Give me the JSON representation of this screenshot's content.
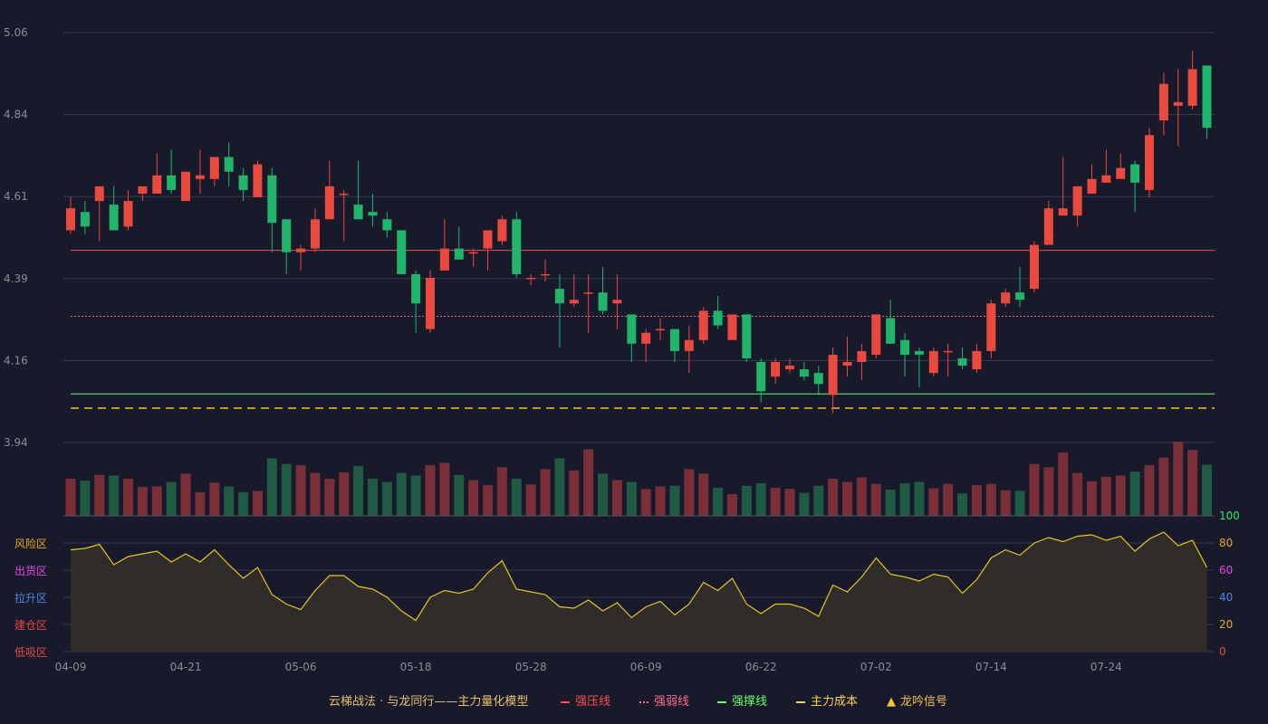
{
  "chart_data": {
    "type": "candlestick",
    "price_axis": {
      "ticks": [
        "5.06",
        "4.84",
        "4.61",
        "4.39",
        "4.16",
        "3.94"
      ],
      "range": [
        3.94,
        5.06
      ]
    },
    "x_tick_labels": [
      "04-09",
      "04-21",
      "05-06",
      "05-18",
      "05-28",
      "06-09",
      "06-22",
      "07-02",
      "07-14",
      "07-24"
    ],
    "x_tick_indices": [
      0,
      8,
      16,
      24,
      32,
      40,
      48,
      56,
      64,
      72
    ],
    "candles": [
      [
        4.52,
        4.58,
        4.61,
        4.51
      ],
      [
        4.57,
        4.53,
        4.6,
        4.51
      ],
      [
        4.6,
        4.64,
        4.64,
        4.49
      ],
      [
        4.59,
        4.52,
        4.64,
        4.52
      ],
      [
        4.53,
        4.6,
        4.63,
        4.52
      ],
      [
        4.62,
        4.64,
        4.64,
        4.6
      ],
      [
        4.62,
        4.67,
        4.73,
        4.62
      ],
      [
        4.67,
        4.63,
        4.74,
        4.62
      ],
      [
        4.6,
        4.68,
        4.68,
        4.6
      ],
      [
        4.66,
        4.67,
        4.74,
        4.62
      ],
      [
        4.66,
        4.72,
        4.72,
        4.64
      ],
      [
        4.72,
        4.68,
        4.76,
        4.64
      ],
      [
        4.67,
        4.63,
        4.69,
        4.6
      ],
      [
        4.61,
        4.7,
        4.71,
        4.61
      ],
      [
        4.67,
        4.54,
        4.69,
        4.46
      ],
      [
        4.55,
        4.46,
        4.55,
        4.4
      ],
      [
        4.46,
        4.47,
        4.48,
        4.41
      ],
      [
        4.47,
        4.55,
        4.58,
        4.46
      ],
      [
        4.55,
        4.64,
        4.71,
        4.55
      ],
      [
        4.62,
        4.62,
        4.63,
        4.49
      ],
      [
        4.59,
        4.55,
        4.71,
        4.55
      ],
      [
        4.57,
        4.56,
        4.62,
        4.53
      ],
      [
        4.55,
        4.52,
        4.57,
        4.5
      ],
      [
        4.52,
        4.4,
        4.52,
        4.4
      ],
      [
        4.4,
        4.32,
        4.41,
        4.24
      ],
      [
        4.25,
        4.39,
        4.41,
        4.24
      ],
      [
        4.41,
        4.47,
        4.55,
        4.41
      ],
      [
        4.47,
        4.44,
        4.53,
        4.44
      ],
      [
        4.46,
        4.46,
        4.47,
        4.42
      ],
      [
        4.47,
        4.52,
        4.52,
        4.41
      ],
      [
        4.49,
        4.55,
        4.56,
        4.48
      ],
      [
        4.55,
        4.4,
        4.57,
        4.39
      ],
      [
        4.39,
        4.39,
        4.4,
        4.37
      ],
      [
        4.4,
        4.4,
        4.44,
        4.38
      ],
      [
        4.36,
        4.32,
        4.4,
        4.2
      ],
      [
        4.32,
        4.33,
        4.4,
        4.31
      ],
      [
        4.35,
        4.35,
        4.4,
        4.24
      ],
      [
        4.35,
        4.3,
        4.42,
        4.29
      ],
      [
        4.32,
        4.33,
        4.4,
        4.25
      ],
      [
        4.29,
        4.21,
        4.29,
        4.16
      ],
      [
        4.21,
        4.24,
        4.25,
        4.16
      ],
      [
        4.25,
        4.25,
        4.28,
        4.22
      ],
      [
        4.25,
        4.19,
        4.25,
        4.16
      ],
      [
        4.19,
        4.22,
        4.26,
        4.13
      ],
      [
        4.22,
        4.3,
        4.31,
        4.21
      ],
      [
        4.3,
        4.26,
        4.34,
        4.25
      ],
      [
        4.22,
        4.29,
        4.29,
        4.25
      ],
      [
        4.29,
        4.17,
        4.29,
        4.16
      ],
      [
        4.16,
        4.08,
        4.17,
        4.05
      ],
      [
        4.12,
        4.16,
        4.17,
        4.1
      ],
      [
        4.14,
        4.15,
        4.17,
        4.13
      ],
      [
        4.14,
        4.12,
        4.16,
        4.11
      ],
      [
        4.13,
        4.1,
        4.15,
        4.07
      ],
      [
        4.07,
        4.18,
        4.2,
        4.02
      ],
      [
        4.15,
        4.16,
        4.23,
        4.12
      ],
      [
        4.16,
        4.19,
        4.21,
        4.11
      ],
      [
        4.18,
        4.29,
        4.29,
        4.17
      ],
      [
        4.28,
        4.21,
        4.33,
        4.21
      ],
      [
        4.22,
        4.18,
        4.24,
        4.12
      ],
      [
        4.19,
        4.18,
        4.2,
        4.09
      ],
      [
        4.13,
        4.19,
        4.2,
        4.12
      ],
      [
        4.19,
        4.19,
        4.21,
        4.12
      ],
      [
        4.17,
        4.15,
        4.2,
        4.14
      ],
      [
        4.14,
        4.19,
        4.21,
        4.13
      ],
      [
        4.19,
        4.32,
        4.33,
        4.17
      ],
      [
        4.32,
        4.35,
        4.36,
        4.31
      ],
      [
        4.35,
        4.33,
        4.42,
        4.31
      ],
      [
        4.36,
        4.48,
        4.49,
        4.35
      ],
      [
        4.48,
        4.58,
        4.6,
        4.48
      ],
      [
        4.56,
        4.58,
        4.72,
        4.56
      ],
      [
        4.56,
        4.64,
        4.64,
        4.53
      ],
      [
        4.62,
        4.66,
        4.7,
        4.62
      ],
      [
        4.65,
        4.67,
        4.74,
        4.65
      ],
      [
        4.66,
        4.69,
        4.73,
        4.66
      ],
      [
        4.7,
        4.65,
        4.71,
        4.57
      ],
      [
        4.63,
        4.78,
        4.8,
        4.61
      ],
      [
        4.82,
        4.92,
        4.95,
        4.78
      ],
      [
        4.86,
        4.87,
        4.96,
        4.75
      ],
      [
        4.86,
        4.96,
        5.01,
        4.85
      ],
      [
        4.97,
        4.8,
        4.97,
        4.77
      ]
    ],
    "volume": [
      58,
      55,
      64,
      63,
      58,
      45,
      46,
      53,
      66,
      37,
      52,
      46,
      37,
      39,
      90,
      81,
      79,
      67,
      58,
      68,
      78,
      58,
      53,
      67,
      63,
      79,
      83,
      64,
      56,
      48,
      76,
      58,
      49,
      73,
      90,
      71,
      104,
      66,
      56,
      53,
      42,
      46,
      47,
      73,
      66,
      44,
      34,
      47,
      51,
      44,
      42,
      36,
      47,
      58,
      53,
      60,
      50,
      41,
      51,
      53,
      43,
      50,
      35,
      48,
      50,
      40,
      39,
      81,
      76,
      99,
      67,
      54,
      61,
      63,
      69,
      79,
      91,
      116,
      103,
      80
    ],
    "levels": {
      "strong_pressure": 4.465,
      "strong_weak": 4.285,
      "strong_support": 4.073,
      "main_cost": 4.034
    },
    "oscillator": {
      "axis_ticks": [
        "100",
        "80",
        "60",
        "40",
        "20",
        "0"
      ],
      "axis_colors": [
        "#2ee66b",
        "#e6a817",
        "#e645e6",
        "#4d8ae6",
        "#e6a817",
        "#e84545"
      ],
      "zones": [
        {
          "label": "风险区",
          "color": "#e6a817"
        },
        {
          "label": "出货区",
          "color": "#e645e6"
        },
        {
          "label": "拉升区",
          "color": "#4d8ae6"
        },
        {
          "label": "建仓区",
          "color": "#e84545"
        },
        {
          "label": "低吸区",
          "color": "#e84545"
        }
      ],
      "values": [
        75,
        76,
        79,
        64,
        70,
        72,
        74,
        66,
        72,
        66,
        75,
        64,
        54,
        62,
        42,
        35,
        31,
        45,
        56,
        56,
        48,
        46,
        40,
        30,
        23,
        40,
        45,
        43,
        46,
        58,
        67,
        46,
        44,
        42,
        33,
        32,
        38,
        30,
        36,
        25,
        33,
        37,
        27,
        35,
        51,
        45,
        54,
        35,
        28,
        35,
        35,
        32,
        26,
        49,
        44,
        55,
        69,
        57,
        55,
        52,
        57,
        55,
        43,
        53,
        69,
        75,
        71,
        80,
        84,
        81,
        85,
        86,
        82,
        85,
        74,
        83,
        88,
        78,
        82,
        62
      ]
    },
    "legend": [
      {
        "label": "云梯战法 · 与龙同行——主力量化模型",
        "color": "#e6c36b",
        "marker": "none"
      },
      {
        "label": "强压线",
        "color": "#ff4d4d",
        "marker": "solid"
      },
      {
        "label": "强弱线",
        "color": "#ff6b8a",
        "marker": "dotted"
      },
      {
        "label": "强撑线",
        "color": "#66ff66",
        "marker": "solid"
      },
      {
        "label": "主力成本",
        "color": "#ffd24d",
        "marker": "dashed"
      },
      {
        "label": "龙吟信号",
        "color": "#f5c242",
        "marker": "triangle"
      }
    ],
    "colors": {
      "up": "#e84a3f",
      "down": "#20b56a",
      "osc_line": "#e6c51f",
      "grid": "#363a52"
    }
  }
}
